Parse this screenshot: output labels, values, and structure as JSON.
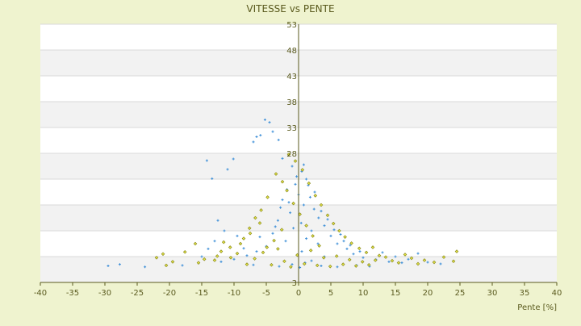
{
  "chart_data": {
    "type": "scatter",
    "title": "VITESSE vs PENTE",
    "xlabel": "Pente [%]",
    "ylabel": "",
    "xlim": [
      -40,
      40
    ],
    "ylim": [
      3,
      53
    ],
    "x_ticks": [
      "-40",
      "-35",
      "-30",
      "-25",
      "-20",
      "-15",
      "-10",
      "-5",
      "0",
      "5",
      "10",
      "15",
      "20",
      "25",
      "30",
      "35",
      "40"
    ],
    "y_ticks": [
      "3",
      "8",
      "13",
      "18",
      "23",
      "28",
      "33",
      "38",
      "43",
      "48",
      "53"
    ],
    "y_tick_labels_shown": [
      "3",
      "28",
      "33",
      "38",
      "43",
      "48",
      "53"
    ],
    "grid": true,
    "band_colors": [
      "#FFFFFF",
      "#F2F2F2"
    ],
    "axis_color": "#5A5A1E",
    "text_color": "#5A5A1E",
    "series": [
      {
        "color": "#3D8FD8",
        "shape": "plus",
        "points": [
          [
            -29.5,
            6.2
          ],
          [
            -27.7,
            6.5
          ],
          [
            -23.8,
            6.0
          ],
          [
            -14.2,
            26.6
          ],
          [
            -13.4,
            23.1
          ],
          [
            -11.0,
            24.9
          ],
          [
            -10.1,
            26.9
          ],
          [
            -7.0,
            30.2
          ],
          [
            -6.5,
            31.2
          ],
          [
            -5.9,
            31.5
          ],
          [
            -5.2,
            34.5
          ],
          [
            -4.5,
            34.0
          ],
          [
            -4.0,
            32.2
          ],
          [
            -3.1,
            30.6
          ],
          [
            -2.5,
            27.0
          ],
          [
            -1.0,
            25.5
          ],
          [
            0.5,
            24.5
          ],
          [
            1.2,
            23.0
          ],
          [
            -0.5,
            22.0
          ],
          [
            -1.8,
            21.0
          ],
          [
            0.0,
            20.0
          ],
          [
            1.8,
            19.5
          ],
          [
            -2.5,
            19.0
          ],
          [
            0.8,
            18.0
          ],
          [
            2.4,
            17.2
          ],
          [
            -1.3,
            16.5
          ],
          [
            3.1,
            15.5
          ],
          [
            -3.2,
            15.0
          ],
          [
            0.4,
            14.5
          ],
          [
            4.0,
            14.0
          ],
          [
            -0.8,
            13.5
          ],
          [
            2.0,
            13.0
          ],
          [
            -4.0,
            12.5
          ],
          [
            5.0,
            12.0
          ],
          [
            1.2,
            11.5
          ],
          [
            -2.0,
            11.0
          ],
          [
            6.0,
            10.5
          ],
          [
            -5.0,
            10.0
          ],
          [
            3.0,
            10.5
          ],
          [
            7.5,
            9.5
          ],
          [
            -6.5,
            9.0
          ],
          [
            0.5,
            9.0
          ],
          [
            8.5,
            8.5
          ],
          [
            -8.0,
            8.2
          ],
          [
            4.0,
            8.0
          ],
          [
            10.0,
            7.8
          ],
          [
            -10.0,
            7.5
          ],
          [
            2.0,
            7.2
          ],
          [
            12.0,
            7.4
          ],
          [
            -12.0,
            7.0
          ],
          [
            1.0,
            6.8
          ],
          [
            14.0,
            7.0
          ],
          [
            -15.0,
            8.0
          ],
          [
            -1.0,
            6.5
          ],
          [
            16.0,
            6.8
          ],
          [
            -18.0,
            6.3
          ],
          [
            3.5,
            6.2
          ],
          [
            20.0,
            6.9
          ],
          [
            6.0,
            6.0
          ],
          [
            -3.0,
            6.1
          ],
          [
            0.2,
            5.9
          ],
          [
            9.0,
            6.3
          ],
          [
            -7.0,
            6.4
          ],
          [
            11.0,
            6.1
          ],
          [
            0.8,
            25.8
          ],
          [
            -0.3,
            23.5
          ],
          [
            1.5,
            21.8
          ],
          [
            2.5,
            20.5
          ],
          [
            -1.5,
            18.5
          ],
          [
            3.5,
            16.8
          ],
          [
            -2.8,
            17.5
          ],
          [
            4.5,
            15.2
          ],
          [
            5.5,
            13.2
          ],
          [
            -3.6,
            13.8
          ],
          [
            6.5,
            12.3
          ],
          [
            7.0,
            11.0
          ],
          [
            -6.0,
            11.8
          ],
          [
            8.0,
            10.2
          ],
          [
            -8.5,
            9.6
          ],
          [
            9.5,
            9.0
          ],
          [
            -9.5,
            12.0
          ],
          [
            -11.5,
            13.0
          ],
          [
            -12.5,
            15.0
          ],
          [
            -13.0,
            11.0
          ],
          [
            -14.0,
            9.5
          ],
          [
            13.0,
            8.8
          ],
          [
            15.0,
            8.0
          ],
          [
            17.0,
            7.5
          ],
          [
            18.5,
            8.6
          ],
          [
            22.0,
            6.6
          ]
        ]
      },
      {
        "color": "#8A8A1A",
        "shape": "diamond",
        "points": [
          [
            -22.0,
            7.8
          ],
          [
            -21.0,
            8.5
          ],
          [
            -19.5,
            7.0
          ],
          [
            -16.0,
            10.5
          ],
          [
            -15.5,
            6.8
          ],
          [
            -13.0,
            7.3
          ],
          [
            -12.0,
            9.0
          ],
          [
            -10.5,
            7.8
          ],
          [
            -9.0,
            10.5
          ],
          [
            -7.5,
            12.5
          ],
          [
            -6.0,
            14.5
          ],
          [
            -4.8,
            19.5
          ],
          [
            -3.5,
            24.0
          ],
          [
            -2.5,
            22.5
          ],
          [
            -1.5,
            27.8
          ],
          [
            -0.5,
            26.5
          ],
          [
            0.6,
            24.8
          ],
          [
            1.6,
            22.2
          ],
          [
            2.6,
            19.8
          ],
          [
            3.5,
            18.0
          ],
          [
            4.5,
            16.0
          ],
          [
            5.4,
            14.4
          ],
          [
            6.3,
            13.0
          ],
          [
            7.2,
            11.8
          ],
          [
            8.2,
            10.6
          ],
          [
            9.4,
            9.6
          ],
          [
            10.5,
            8.8
          ],
          [
            11.5,
            9.8
          ],
          [
            12.5,
            8.2
          ],
          [
            13.5,
            7.9
          ],
          [
            14.5,
            7.2
          ],
          [
            15.5,
            6.8
          ],
          [
            16.5,
            8.4
          ],
          [
            17.5,
            7.7
          ],
          [
            18.5,
            6.6
          ],
          [
            19.5,
            7.3
          ],
          [
            21.0,
            6.9
          ],
          [
            22.5,
            7.9
          ],
          [
            24.0,
            7.1
          ],
          [
            24.5,
            9.0
          ],
          [
            -8.0,
            6.5
          ],
          [
            -6.8,
            7.6
          ],
          [
            -5.5,
            8.8
          ],
          [
            -4.2,
            6.4
          ],
          [
            -3.2,
            9.5
          ],
          [
            -2.2,
            7.1
          ],
          [
            -1.2,
            6.0
          ],
          [
            -0.2,
            8.3
          ],
          [
            0.9,
            6.6
          ],
          [
            1.9,
            9.2
          ],
          [
            2.9,
            6.3
          ],
          [
            3.9,
            7.8
          ],
          [
            4.9,
            6.1
          ],
          [
            5.9,
            8.1
          ],
          [
            6.9,
            6.5
          ],
          [
            7.9,
            7.4
          ],
          [
            8.9,
            6.2
          ],
          [
            9.9,
            7.0
          ],
          [
            10.9,
            6.4
          ],
          [
            11.9,
            7.3
          ],
          [
            -1.8,
            20.8
          ],
          [
            -0.8,
            18.3
          ],
          [
            0.2,
            16.2
          ],
          [
            1.2,
            14.0
          ],
          [
            2.2,
            12.0
          ],
          [
            3.2,
            10.1
          ],
          [
            -2.6,
            13.2
          ],
          [
            -3.8,
            11.1
          ],
          [
            -4.9,
            9.8
          ],
          [
            -5.8,
            17.0
          ],
          [
            -6.7,
            15.5
          ],
          [
            -7.6,
            13.5
          ],
          [
            -8.5,
            11.5
          ],
          [
            -9.5,
            8.6
          ],
          [
            -10.6,
            9.8
          ],
          [
            -11.6,
            10.8
          ],
          [
            -12.6,
            8.1
          ],
          [
            -14.6,
            7.5
          ],
          [
            -17.6,
            8.9
          ],
          [
            -20.5,
            6.3
          ]
        ]
      }
    ]
  }
}
